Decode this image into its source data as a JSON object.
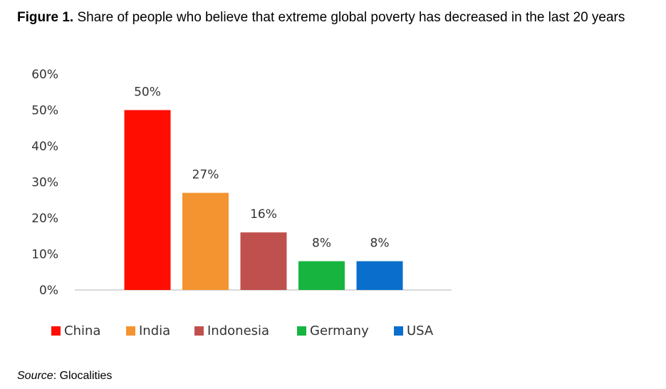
{
  "figure": {
    "label": "Figure 1.",
    "text": " Share of people who believe that extreme global poverty has decreased in the last 20 years"
  },
  "source": {
    "label": "Source",
    "text": ": Glocalities"
  },
  "chart_data": {
    "type": "bar",
    "categories": [
      "China",
      "India",
      "Indonesia",
      "Germany",
      "USA"
    ],
    "values": [
      50,
      27,
      16,
      8,
      8
    ],
    "data_labels": [
      "50%",
      "27%",
      "16%",
      "8%",
      "8%"
    ],
    "colors": [
      "#ff0d00",
      "#f39430",
      "#c0504d",
      "#17b53f",
      "#0a6fcc"
    ],
    "ylim": [
      0,
      60
    ],
    "yticks": [
      0,
      10,
      20,
      30,
      40,
      50,
      60
    ],
    "ytick_labels": [
      "0%",
      "10%",
      "20%",
      "30%",
      "40%",
      "50%",
      "60%"
    ],
    "grid": false,
    "legend": {
      "position": "bottom",
      "entries": [
        "China",
        "India",
        "Indonesia",
        "Germany",
        "USA"
      ]
    }
  }
}
